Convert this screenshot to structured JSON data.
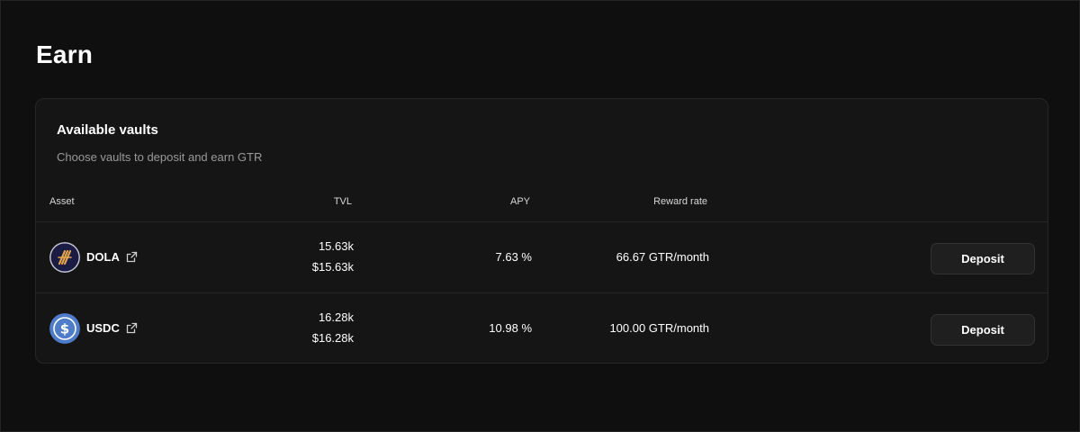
{
  "page": {
    "title": "Earn"
  },
  "vaults_card": {
    "title": "Available vaults",
    "subtitle": "Choose vaults to deposit and earn GTR",
    "columns": {
      "asset": "Asset",
      "tvl": "TVL",
      "apy": "APY",
      "reward_rate": "Reward rate"
    },
    "rows": [
      {
        "asset": "DOLA",
        "icon": "dola-logo-icon",
        "tvl_amount": "15.63k",
        "tvl_usd": "$15.63k",
        "apy": "7.63 %",
        "reward_rate": "66.67 GTR/month",
        "action_label": "Deposit"
      },
      {
        "asset": "USDC",
        "icon": "usdc-logo-icon",
        "tvl_amount": "16.28k",
        "tvl_usd": "$16.28k",
        "apy": "10.98 %",
        "reward_rate": "100.00 GTR/month",
        "action_label": "Deposit"
      }
    ]
  },
  "colors": {
    "background": "#0f0f0f",
    "card": "#151515",
    "muted_text": "#9a9a9a",
    "dola_navy": "#1a1c44",
    "dola_gold": "#e3a54a",
    "usdc_blue": "#4e7cc9"
  }
}
